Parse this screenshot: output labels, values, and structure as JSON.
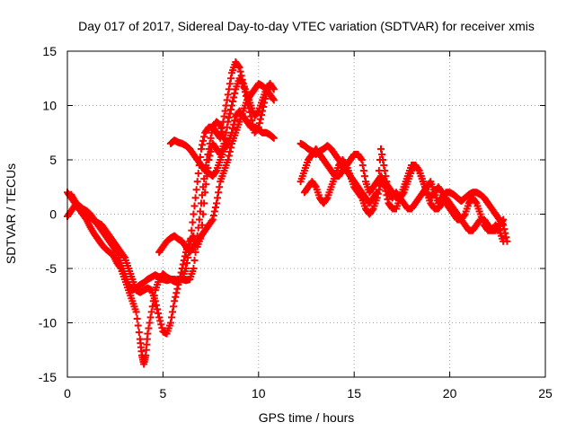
{
  "chart_data": {
    "type": "scatter",
    "title": "Day 017 of 2017, Sidereal Day-to-day VTEC variation (SDTVAR) for receiver xmis",
    "xlabel": "GPS time / hours",
    "ylabel": "SDTVAR / TECUs",
    "xlim": [
      0,
      25
    ],
    "ylim": [
      -15,
      15
    ],
    "xticks": [
      0,
      5,
      10,
      15,
      20,
      25
    ],
    "yticks": [
      -15,
      -10,
      -5,
      0,
      5,
      10,
      15
    ],
    "grid": true,
    "marker": "+",
    "color": "#ff0000",
    "series": [
      {
        "x": [
          0.0,
          0.2,
          0.4,
          0.6,
          0.8,
          1.0,
          1.2,
          1.4,
          1.6,
          1.8,
          2.0,
          2.2,
          2.4,
          2.6,
          2.8,
          3.0,
          3.2,
          3.4,
          3.6,
          3.8,
          4.0,
          4.2,
          4.4,
          4.6,
          4.8,
          5.0,
          5.2,
          5.4,
          5.6,
          5.8,
          6.0,
          6.2,
          6.4,
          6.6,
          6.8,
          7.0,
          7.2,
          7.4,
          7.6,
          7.8,
          8.0,
          8.2,
          8.4,
          8.6,
          8.8,
          9.0,
          9.2,
          9.4,
          9.6,
          9.8,
          10.0,
          10.2,
          10.4,
          10.6,
          10.8
        ],
        "y": [
          2.0,
          1.5,
          1.0,
          0.8,
          0.5,
          0.3,
          0.0,
          -0.5,
          -1.0,
          -1.5,
          -2.0,
          -2.5,
          -3.0,
          -3.5,
          -4.5,
          -5.5,
          -6.5,
          -7.0,
          -6.8,
          -6.5,
          -6.3,
          -6.0,
          -5.8,
          -5.6,
          -5.8,
          -6.0,
          -6.1,
          -6.0,
          -6.0,
          -6.1,
          -6.0,
          -6.1,
          -6.0,
          -5.0,
          -2.0,
          1.0,
          4.0,
          6.0,
          8.0,
          8.5,
          8.2,
          7.0,
          6.5,
          7.5,
          9.0,
          9.5,
          9.0,
          8.5,
          8.0,
          8.0,
          7.8,
          7.5,
          7.5,
          7.3,
          7.0
        ]
      },
      {
        "x": [
          0.0,
          0.2,
          0.4,
          0.6,
          0.8,
          1.0,
          1.2,
          1.4,
          1.6,
          1.8,
          2.0,
          2.2,
          2.4,
          2.6,
          2.8,
          3.0,
          3.2,
          3.4,
          3.6,
          3.8,
          3.9,
          4.0,
          4.1,
          4.2,
          4.4,
          4.6,
          4.8,
          5.0,
          5.2,
          5.4,
          5.6,
          5.8,
          6.0,
          6.2,
          6.4,
          6.6,
          6.8,
          7.0,
          7.2,
          7.4,
          7.6,
          7.8,
          8.0,
          8.2,
          8.4,
          8.6,
          8.8,
          9.0,
          9.2,
          9.4,
          9.6,
          9.8,
          10.0,
          10.2,
          10.4,
          10.6
        ],
        "y": [
          -0.2,
          0.3,
          0.8,
          0.5,
          0.0,
          -0.5,
          -1.2,
          -1.8,
          -2.3,
          -2.8,
          -3.2,
          -3.5,
          -3.8,
          -4.5,
          -5.0,
          -6.0,
          -7.0,
          -8.0,
          -9.0,
          -11.5,
          -13.0,
          -13.8,
          -13.0,
          -11.0,
          -9.0,
          -7.0,
          -6.0,
          -5.5,
          -5.8,
          -6.0,
          -6.2,
          -6.1,
          -6.0,
          -5.0,
          -3.0,
          0.0,
          3.0,
          6.0,
          7.5,
          8.0,
          8.0,
          7.5,
          7.0,
          9.0,
          11.0,
          13.0,
          14.0,
          13.5,
          12.0,
          10.5,
          9.0,
          7.5,
          8.0,
          9.5,
          11.0,
          12.0
        ]
      },
      {
        "x": [
          0.2,
          0.4,
          0.6,
          0.8,
          1.0,
          1.2,
          1.4,
          1.6,
          1.8,
          2.0,
          2.2,
          2.4,
          2.6,
          2.8,
          3.0,
          3.2,
          3.4,
          3.6,
          3.8,
          4.0,
          4.2,
          4.4,
          4.6,
          4.8,
          5.0,
          5.2,
          5.4,
          5.6,
          5.8,
          6.0,
          6.2,
          6.4,
          6.6,
          6.8,
          7.0,
          7.2,
          7.4,
          7.6,
          7.8,
          8.0,
          8.2,
          8.4,
          8.6,
          8.8,
          9.0,
          9.2,
          9.4,
          9.6,
          9.8,
          10.0,
          10.2,
          10.4,
          10.6,
          10.8
        ],
        "y": [
          1.8,
          1.2,
          0.7,
          0.2,
          0.0,
          -0.3,
          -0.6,
          -0.8,
          -1.0,
          -1.5,
          -2.0,
          -2.5,
          -3.0,
          -3.5,
          -4.0,
          -5.0,
          -6.0,
          -7.0,
          -7.2,
          -7.0,
          -6.8,
          -7.0,
          -8.0,
          -9.5,
          -10.8,
          -11.0,
          -10.0,
          -8.0,
          -6.5,
          -5.0,
          -3.5,
          -2.5,
          -2.0,
          -3.0,
          -2.0,
          2.0,
          5.0,
          6.5,
          6.0,
          5.5,
          6.5,
          8.5,
          10.0,
          11.5,
          12.5,
          12.0,
          11.0,
          10.0,
          9.0,
          9.5,
          10.5,
          11.5,
          12.0,
          11.5
        ]
      },
      {
        "x": [
          4.8,
          5.0,
          5.2,
          5.4,
          5.6,
          5.8,
          6.0,
          6.2,
          6.4,
          6.6,
          6.8,
          7.0,
          7.2,
          7.4,
          7.6,
          7.8,
          8.0,
          8.2,
          8.4,
          8.6,
          8.8,
          9.0,
          9.2,
          9.4,
          9.6,
          9.8,
          10.0,
          10.2,
          10.4,
          10.6,
          10.8
        ],
        "y": [
          -3.5,
          -3.0,
          -2.5,
          -2.2,
          -2.0,
          -2.3,
          -2.5,
          -3.0,
          -3.5,
          -3.0,
          -2.5,
          -2.0,
          -1.5,
          -1.0,
          -0.5,
          1.0,
          3.0,
          4.0,
          5.0,
          6.5,
          7.5,
          8.5,
          9.5,
          10.5,
          11.0,
          11.5,
          12.0,
          11.8,
          11.5,
          11.0,
          10.5
        ]
      },
      {
        "x": [
          5.4,
          5.6,
          5.8,
          6.0,
          6.2,
          6.4,
          6.6,
          6.8,
          7.0,
          7.2,
          7.4,
          7.6,
          7.8,
          8.0,
          8.2,
          8.4
        ],
        "y": [
          6.5,
          6.8,
          6.6,
          6.5,
          6.3,
          6.0,
          5.5,
          5.0,
          4.5,
          4.0,
          3.8,
          3.5,
          4.0,
          5.0,
          6.0,
          6.5
        ]
      },
      {
        "x": [
          12.2,
          12.4,
          12.6,
          12.8,
          13.0,
          13.2,
          13.4,
          13.6,
          13.8,
          14.0,
          14.2,
          14.4,
          14.6,
          14.8,
          15.0,
          15.2,
          15.4,
          15.6,
          15.8,
          16.0,
          16.2,
          16.4,
          16.6,
          16.8,
          17.0,
          17.2,
          17.4,
          17.6,
          17.8,
          18.0,
          18.2,
          18.4,
          18.6,
          18.8,
          19.0,
          19.2,
          19.4,
          19.6,
          19.8,
          20.0,
          20.2,
          20.4,
          20.6,
          20.8,
          21.0,
          21.2,
          21.4,
          21.6,
          21.8,
          22.0,
          22.2,
          22.4,
          22.6,
          22.8,
          23.0
        ],
        "y": [
          6.5,
          6.3,
          6.0,
          5.8,
          5.5,
          5.8,
          6.0,
          6.3,
          6.0,
          5.5,
          5.0,
          4.5,
          4.0,
          3.5,
          3.0,
          2.5,
          2.0,
          1.5,
          1.0,
          1.5,
          2.0,
          6.0,
          4.0,
          2.0,
          1.5,
          2.0,
          1.5,
          1.0,
          0.5,
          0.5,
          1.0,
          1.5,
          2.0,
          2.5,
          3.0,
          2.0,
          1.0,
          1.5,
          2.0,
          2.0,
          1.8,
          1.5,
          1.2,
          1.5,
          1.8,
          2.0,
          2.0,
          1.8,
          1.5,
          1.0,
          0.5,
          0.0,
          -0.5,
          -1.0,
          -2.5
        ]
      },
      {
        "x": [
          12.2,
          12.4,
          12.6,
          12.8,
          13.0,
          13.2,
          13.4,
          13.6,
          13.8,
          14.0,
          14.2,
          14.4,
          14.6,
          14.8,
          15.0,
          15.2,
          15.4,
          15.6,
          15.8,
          16.0,
          16.2,
          16.4,
          16.6,
          16.8,
          17.0,
          17.2,
          17.4,
          17.6,
          17.8,
          18.0,
          18.2,
          18.4,
          18.6,
          18.8,
          19.0,
          19.2,
          19.4,
          19.6,
          19.8,
          20.0,
          20.2,
          20.4,
          20.6,
          20.8,
          21.0,
          21.2,
          21.4,
          21.6,
          21.8,
          22.0,
          22.2,
          22.4,
          22.6,
          22.8
        ],
        "y": [
          3.0,
          4.0,
          5.0,
          5.5,
          6.0,
          5.5,
          5.0,
          4.5,
          4.0,
          3.5,
          3.5,
          4.0,
          4.5,
          5.0,
          5.5,
          5.5,
          5.0,
          3.0,
          2.0,
          2.5,
          3.0,
          3.5,
          3.0,
          2.5,
          2.0,
          1.5,
          1.5,
          2.0,
          3.0,
          4.0,
          4.5,
          4.0,
          3.0,
          2.0,
          1.0,
          0.5,
          0.5,
          1.0,
          1.5,
          1.0,
          0.5,
          0.0,
          -0.5,
          -1.0,
          -1.5,
          -1.5,
          -1.0,
          -0.5,
          -0.5,
          -1.0,
          -1.5,
          -1.5,
          -1.0,
          -0.5
        ]
      },
      {
        "x": [
          12.4,
          12.6,
          12.8,
          13.0,
          13.2,
          13.4,
          13.6,
          13.8,
          14.0,
          14.2,
          14.4,
          14.6,
          14.8,
          15.0,
          15.2,
          15.4,
          15.6,
          15.8,
          16.0,
          16.2,
          16.4,
          16.6,
          16.8,
          17.0,
          17.2,
          17.4,
          17.6,
          17.8,
          18.0,
          18.2,
          18.4,
          18.6,
          18.8,
          19.0,
          19.2,
          19.4,
          19.6,
          19.8,
          20.0,
          20.2,
          20.4,
          20.6,
          20.8,
          21.0,
          21.2,
          21.4,
          21.6,
          21.8,
          22.0,
          22.2,
          22.4,
          22.6,
          22.8
        ],
        "y": [
          2.0,
          2.5,
          3.0,
          2.5,
          1.5,
          1.0,
          1.5,
          2.5,
          3.5,
          4.5,
          5.0,
          4.5,
          3.5,
          2.5,
          2.0,
          1.5,
          0.5,
          0.0,
          0.5,
          1.5,
          3.0,
          2.5,
          1.0,
          0.5,
          0.5,
          1.5,
          2.5,
          3.5,
          4.5,
          4.5,
          4.0,
          3.0,
          2.0,
          1.5,
          2.0,
          2.5,
          2.0,
          1.0,
          0.5,
          0.0,
          -0.5,
          -0.5,
          0.0,
          1.0,
          1.5,
          1.0,
          0.0,
          -1.0,
          -1.5,
          -1.5,
          -1.0,
          -1.5,
          -2.5
        ]
      }
    ]
  }
}
